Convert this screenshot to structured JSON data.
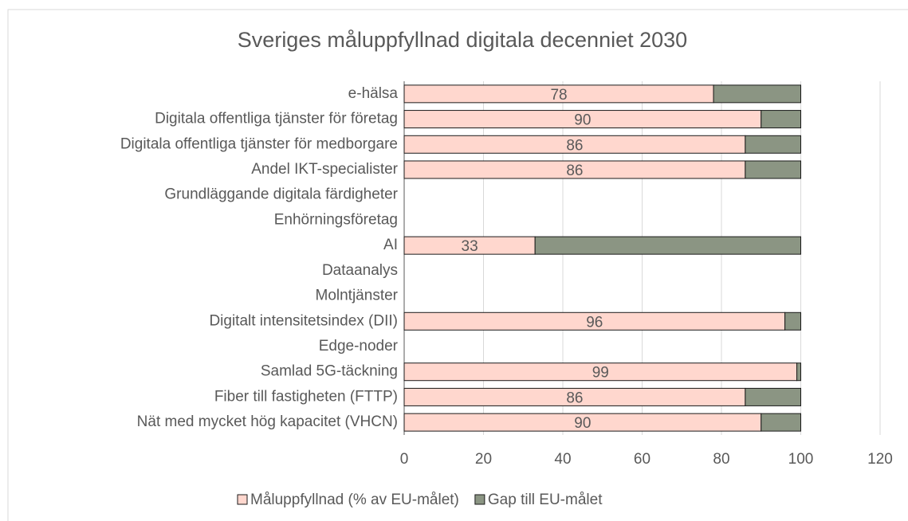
{
  "chart_data": {
    "type": "stacked-bar-horizontal",
    "title": "Sveriges måluppfyllnad digitala decenniet 2030",
    "categories": [
      "e-hälsa",
      "Digitala offentliga tjänster för företag",
      "Digitala offentliga tjänster för medborgare",
      "Andel IKT-specialister",
      "Grundläggande digitala färdigheter",
      "Enhörningsföretag",
      "AI",
      "Dataanalys",
      "Molntjänster",
      "Digitalt intensitetsindex (DII)",
      "Edge-noder",
      "Samlad 5G-täckning",
      "Fiber till fastigheten (FTTP)",
      "Nät med mycket hög kapacitet (VHCN)"
    ],
    "series": [
      {
        "name": "Måluppfyllnad (% av EU-målet)",
        "color": "#ffd7ce",
        "values": [
          78,
          90,
          86,
          86,
          null,
          null,
          33,
          null,
          null,
          96,
          null,
          99,
          86,
          90
        ]
      },
      {
        "name": "Gap till EU-målet",
        "color": "#8b9583",
        "values": [
          22,
          10,
          14,
          14,
          null,
          null,
          67,
          null,
          null,
          4,
          null,
          1,
          14,
          10
        ]
      }
    ],
    "xlim": [
      0,
      120
    ],
    "xticks": [
      0,
      20,
      40,
      60,
      80,
      100,
      120
    ],
    "grid": true,
    "legend": "bottom"
  }
}
